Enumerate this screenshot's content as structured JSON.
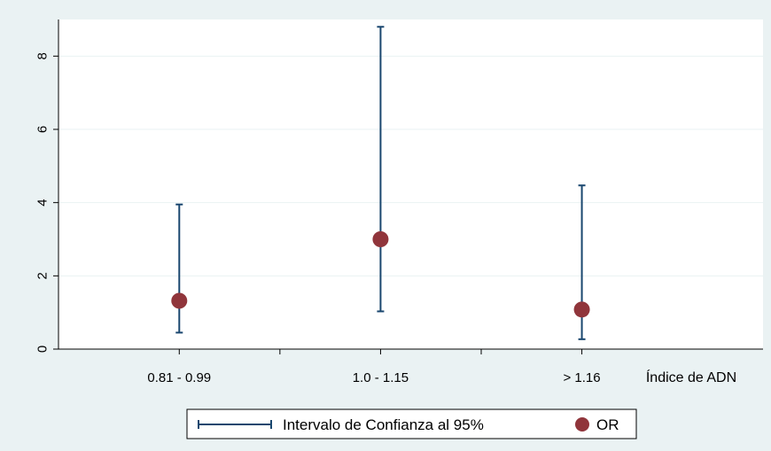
{
  "chart_data": {
    "type": "scatter",
    "title": "",
    "xlabel": "Índice de ADN",
    "ylabel": "",
    "categories": [
      "0.81 - 0.99",
      "1.0 - 1.15",
      "> 1.16"
    ],
    "ylim": [
      0,
      9
    ],
    "yticks": [
      0,
      2,
      4,
      6,
      8
    ],
    "grid": true,
    "legend_position": "bottom",
    "colors": {
      "background": "#eaf2f3",
      "plot_area": "#ffffff",
      "gridline": "#eaf2f3",
      "interval": "#1a476f",
      "point": "#90353b"
    },
    "series": [
      {
        "name": "Intervalo de Confianza al 95%",
        "kind": "errorbar",
        "low": [
          0.45,
          1.03,
          0.27
        ],
        "high": [
          3.95,
          8.8,
          4.47
        ]
      },
      {
        "name": "OR",
        "kind": "point",
        "values": [
          1.32,
          3.0,
          1.08
        ]
      }
    ]
  }
}
